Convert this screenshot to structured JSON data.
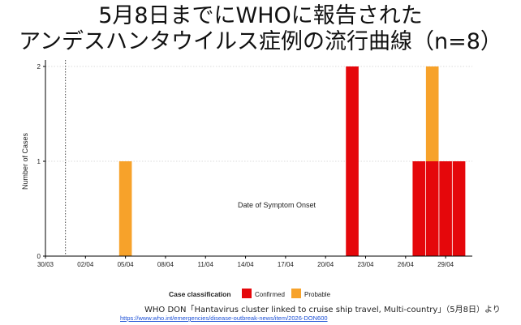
{
  "title_line_1": "5月8日までにWHOに報告された",
  "title_line_2": "アンデスハンタウイルス症例の流行曲線（n=8）",
  "source_text": "WHO DON「Hantavirus cluster linked to cruise ship travel, Multi-country」（5月8日）より",
  "source_url": "https://www.who.int/emergencies/disease-outbreak-news/item/2026-DON600",
  "chart_data": {
    "type": "bar",
    "stacked": true,
    "xlabel": "Date of Symptom Onset",
    "ylabel": "Number of Cases",
    "ylim": [
      0,
      2
    ],
    "y_ticks": [
      0,
      1,
      2
    ],
    "x_range_days": [
      "30/03",
      "01/05"
    ],
    "x_tick_labels": [
      "30/03",
      "02/04",
      "05/04",
      "08/04",
      "11/04",
      "14/04",
      "17/04",
      "20/04",
      "23/04",
      "26/04",
      "29/04"
    ],
    "x_tick_days": [
      0,
      3,
      6,
      9,
      12,
      15,
      18,
      21,
      24,
      27,
      30
    ],
    "reference_line_date": "01/04",
    "grid": "horizontal",
    "legend": {
      "title": "Case classification",
      "position": "bottom"
    },
    "series": [
      {
        "name": "Confirmed",
        "color": "#e5070b",
        "points": [
          {
            "date": "22/04",
            "value": 2
          },
          {
            "date": "27/04",
            "value": 1
          },
          {
            "date": "28/04",
            "value": 1
          },
          {
            "date": "29/04",
            "value": 1
          },
          {
            "date": "30/04",
            "value": 1
          }
        ]
      },
      {
        "name": "Probable",
        "color": "#f7a22a",
        "points": [
          {
            "date": "05/04",
            "value": 1
          },
          {
            "date": "28/04",
            "value": 1
          }
        ]
      }
    ]
  }
}
